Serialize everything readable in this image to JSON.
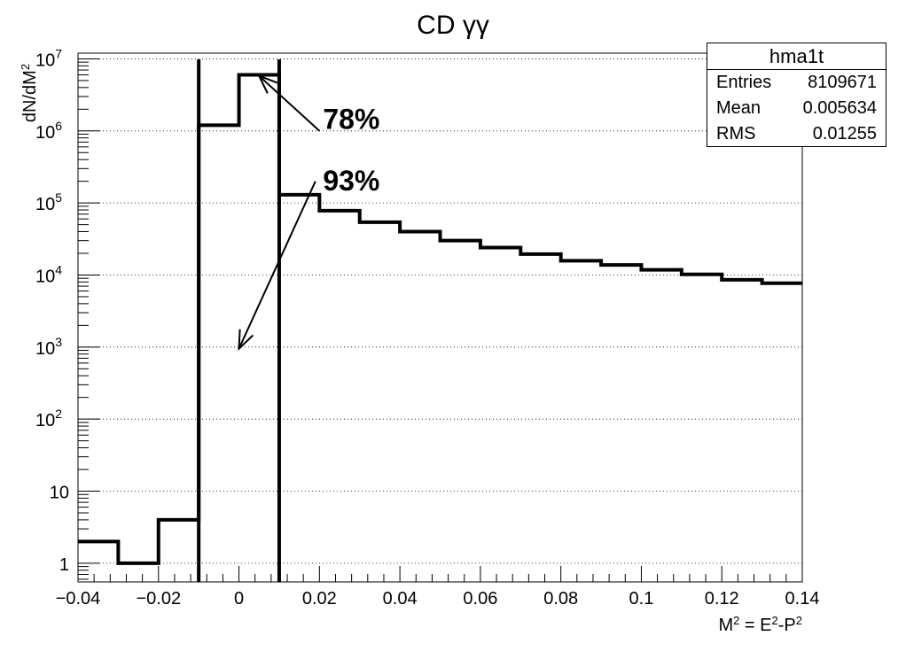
{
  "chart_data": {
    "type": "histogram",
    "title": "CD γγ",
    "ylabel": "dN/dM²",
    "xlabel": "M² = E²-P²",
    "xlim": [
      -0.04,
      0.14
    ],
    "ylim": [
      0.55,
      12000000
    ],
    "log_y": true,
    "grid": "y-only dotted",
    "x_ticks": [
      "−0.04",
      "−0.02",
      "0",
      "0.02",
      "0.04",
      "0.06",
      "0.08",
      "0.1",
      "0.12",
      "0.14"
    ],
    "x_tick_values": [
      -0.04,
      -0.02,
      0,
      0.02,
      0.04,
      0.06,
      0.08,
      0.1,
      0.12,
      0.14
    ],
    "y_ticks": [
      {
        "value": 1,
        "base": "1",
        "exp": ""
      },
      {
        "value": 10,
        "base": "10",
        "exp": ""
      },
      {
        "value": 100,
        "base": "10",
        "exp": "2"
      },
      {
        "value": 1000,
        "base": "10",
        "exp": "3"
      },
      {
        "value": 10000,
        "base": "10",
        "exp": "4"
      },
      {
        "value": 100000,
        "base": "10",
        "exp": "5"
      },
      {
        "value": 1000000,
        "base": "10",
        "exp": "6"
      },
      {
        "value": 10000000,
        "base": "10",
        "exp": "7"
      }
    ],
    "bin_edges": [
      -0.04,
      -0.03,
      -0.02,
      -0.01,
      0,
      0.01,
      0.02,
      0.03,
      0.04,
      0.05,
      0.06,
      0.07,
      0.08,
      0.09,
      0.1,
      0.11,
      0.12,
      0.13,
      0.14
    ],
    "bin_values": [
      2,
      1,
      4,
      1200000,
      6000000,
      130000,
      78000,
      54000,
      40000,
      30000,
      24000,
      19500,
      15800,
      13800,
      11800,
      10200,
      8600,
      7700
    ],
    "vertical_lines_x": [
      -0.01,
      0.01
    ],
    "annotations": [
      {
        "text": "78%",
        "x": 0.02,
        "y": 1500000,
        "arrow_from": [
          0.02,
          1000000
        ],
        "arrow_to": [
          0.005,
          5800000
        ]
      },
      {
        "text": "93%",
        "x": 0.02,
        "y": 210000,
        "arrow_from": [
          0.019,
          200000
        ],
        "arrow_to": [
          0,
          950
        ]
      }
    ],
    "stats": {
      "name": "hma1t",
      "rows": [
        {
          "label": "Entries",
          "value": "8109671"
        },
        {
          "label": "Mean",
          "value": "0.005634"
        },
        {
          "label": "RMS",
          "value": "0.01255"
        }
      ]
    }
  }
}
